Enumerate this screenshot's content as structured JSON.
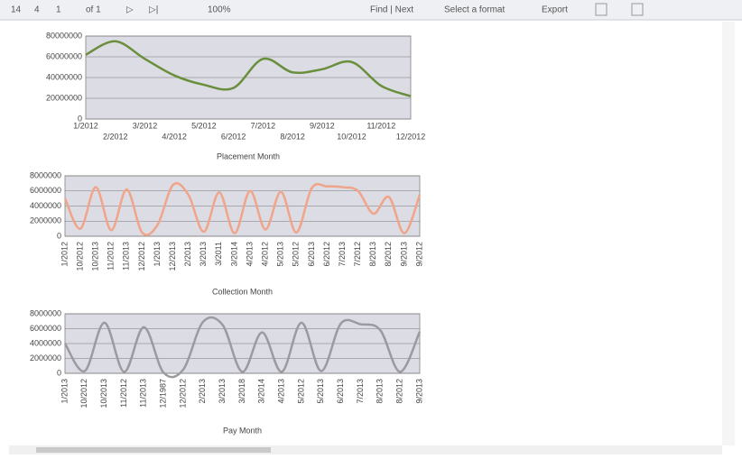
{
  "toolbar": {
    "first": "14",
    "prev": "4",
    "page": "1",
    "of": "of 1",
    "next": "▷",
    "last": "▷|",
    "zoom": "100%",
    "find": "Find | Next",
    "format": "Select a format",
    "export": "Export"
  },
  "chart_data": [
    {
      "type": "line",
      "title": "Placement Month",
      "color": "#6a8f3c",
      "categories": [
        "1/2012",
        "2/2012",
        "3/2012",
        "4/2012",
        "5/2012",
        "6/2012",
        "7/2012",
        "8/2012",
        "9/2012",
        "10/2012",
        "11/2012",
        "12/2012"
      ],
      "values": [
        62000000,
        75000000,
        58000000,
        42000000,
        33000000,
        30000000,
        58000000,
        45000000,
        48000000,
        55000000,
        32000000,
        22000000
      ],
      "ylim": [
        0,
        80000000
      ],
      "yticks": [
        0,
        20000000,
        40000000,
        60000000,
        80000000
      ],
      "grid": true,
      "rotate_labels": false
    },
    {
      "type": "line",
      "title": "Collection Month",
      "color": "#f0a58a",
      "categories": [
        "1/2012",
        "10/2012",
        "10/2013",
        "11/2012",
        "11/2013",
        "12/2012",
        "1/2013",
        "12/2013",
        "2/2013",
        "3/2013",
        "3/2011",
        "3/2014",
        "4/2013",
        "4/2012",
        "5/2013",
        "5/2012",
        "6/2013",
        "6/2012",
        "7/2013",
        "7/2012",
        "8/2013",
        "8/2012",
        "9/2013",
        "9/2012"
      ],
      "values": [
        5000000,
        1000000,
        6500000,
        800000,
        6200000,
        500000,
        1500000,
        6800000,
        5500000,
        600000,
        5800000,
        400000,
        6000000,
        900000,
        5900000,
        500000,
        6400000,
        6600000,
        6500000,
        6000000,
        3000000,
        5200000,
        400000,
        5500000
      ],
      "ylim": [
        0,
        8000000
      ],
      "yticks": [
        0,
        2000000,
        4000000,
        6000000,
        8000000
      ],
      "grid": true,
      "rotate_labels": true
    },
    {
      "type": "line",
      "title": "Pay Month",
      "color": "#9a9aa0",
      "categories": [
        "1/2013",
        "10/2012",
        "10/2013",
        "11/2012",
        "11/2013",
        "12/1987",
        "12/2012",
        "2/2013",
        "3/2013",
        "3/2018",
        "3/2014",
        "4/2013",
        "5/2012",
        "5/2013",
        "6/2013",
        "7/2013",
        "8/2013",
        "8/2012",
        "9/2013"
      ],
      "values": [
        4000000,
        300000,
        6800000,
        200000,
        6200000,
        100000,
        500000,
        6900000,
        6500000,
        200000,
        5500000,
        200000,
        6800000,
        300000,
        6700000,
        6600000,
        5800000,
        200000,
        5600000
      ],
      "ylim": [
        0,
        8000000
      ],
      "yticks": [
        0,
        2000000,
        4000000,
        6000000,
        8000000
      ],
      "grid": true,
      "rotate_labels": true
    }
  ]
}
